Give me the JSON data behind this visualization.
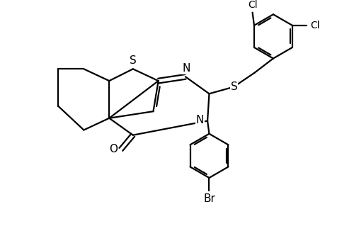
{
  "background_color": "#ffffff",
  "line_color": "#000000",
  "line_width": 1.6,
  "font_size": 10,
  "fig_width": 5.0,
  "fig_height": 3.5,
  "dpi": 100,
  "xlim": [
    0,
    10
  ],
  "ylim": [
    0,
    7
  ]
}
